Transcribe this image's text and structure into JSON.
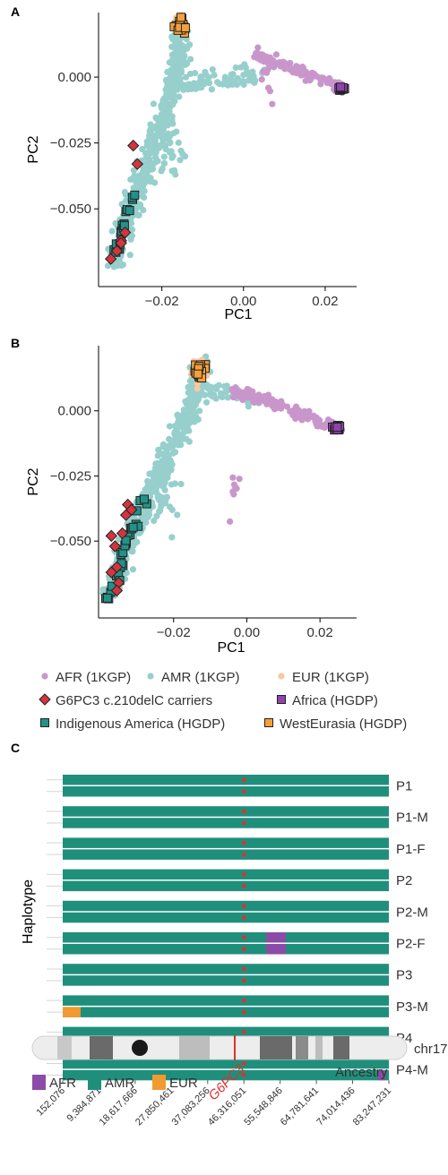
{
  "chart_data": [
    {
      "panel": "A",
      "type": "scatter",
      "xlabel": "PC1",
      "ylabel": "PC2",
      "xticks": [
        "-0.02",
        "0.00",
        "0.02"
      ],
      "yticks": [
        "0.000",
        "-0.025",
        "-0.050"
      ],
      "x_tick_values": [
        -0.02,
        0.0,
        0.02
      ],
      "y_tick_values": [
        0.0,
        -0.025,
        -0.05
      ],
      "xlim": [
        -0.0355,
        0.0277
      ],
      "ylim": [
        -0.0795,
        0.0245
      ],
      "grid": false,
      "clusters": [
        {
          "series": "AMR (1KGP)",
          "kind": "curve",
          "n": 420,
          "spread": 0.0023,
          "path": [
            [
              -0.0318,
              -0.072
            ],
            [
              -0.029,
              -0.057
            ],
            [
              -0.026,
              -0.043
            ],
            [
              -0.0225,
              -0.028
            ],
            [
              -0.0195,
              -0.015
            ],
            [
              -0.0175,
              -0.003
            ],
            [
              -0.0158,
              0.008
            ],
            [
              -0.0155,
              0.017
            ]
          ]
        },
        {
          "series": "AMR (1KGP)",
          "kind": "curve",
          "n": 90,
          "spread": 0.0028,
          "path": [
            [
              -0.019,
              -0.004
            ],
            [
              -0.012,
              -0.002
            ],
            [
              -0.004,
              0.0
            ],
            [
              0.004,
              0.002
            ]
          ]
        },
        {
          "series": "AMR (1KGP)",
          "kind": "blob",
          "n": 40,
          "center": [
            -0.019,
            -0.028
          ],
          "spread": [
            0.004,
            0.009
          ]
        },
        {
          "series": "AFR (1KGP)",
          "kind": "curve",
          "n": 110,
          "spread": 0.0014,
          "path": [
            [
              0.003,
              0.008
            ],
            [
              0.01,
              0.005
            ],
            [
              0.017,
              0.0
            ],
            [
              0.024,
              -0.004
            ]
          ]
        },
        {
          "series": "AFR (1KGP)",
          "kind": "blob",
          "n": 8,
          "center": [
            0.006,
            -0.003
          ],
          "spread": [
            0.004,
            0.008
          ]
        },
        {
          "series": "EUR (1KGP)",
          "kind": "blob",
          "n": 45,
          "center": [
            -0.0155,
            0.02
          ],
          "spread": [
            0.0012,
            0.0025
          ]
        },
        {
          "series": "WestEurasia (HGDP)",
          "kind": "blob",
          "n": 28,
          "center": [
            -0.0155,
            0.0195
          ],
          "spread": [
            0.0011,
            0.0022
          ]
        },
        {
          "series": "Africa (HGDP)",
          "kind": "blob",
          "n": 14,
          "center": [
            0.0238,
            -0.0042
          ],
          "spread": [
            0.0008,
            0.0006
          ]
        },
        {
          "series": "Indigenous America (HGDP)",
          "kind": "curve",
          "n": 20,
          "spread": 0.0008,
          "path": [
            [
              -0.032,
              -0.074
            ],
            [
              -0.0305,
              -0.064
            ],
            [
              -0.029,
              -0.055
            ],
            [
              -0.027,
              -0.045
            ]
          ]
        },
        {
          "series": "G6PC3 c.210delC carriers",
          "kind": "points",
          "points": [
            [
              -0.027,
              -0.026
            ],
            [
              -0.026,
              -0.033
            ],
            [
              -0.029,
              -0.059
            ],
            [
              -0.03,
              -0.062
            ],
            [
              -0.031,
              -0.066
            ],
            [
              -0.0325,
              -0.069
            ],
            [
              -0.03,
              -0.063
            ]
          ]
        }
      ]
    },
    {
      "panel": "B",
      "type": "scatter",
      "xlabel": "PC1",
      "ylabel": "PC2",
      "xticks": [
        "-0.02",
        "0.00",
        "0.02"
      ],
      "yticks": [
        "0.000",
        "-0.025",
        "-0.050"
      ],
      "x_tick_values": [
        -0.02,
        0.0,
        0.02
      ],
      "y_tick_values": [
        0.0,
        -0.025,
        -0.05
      ],
      "xlim": [
        -0.0405,
        0.03
      ],
      "ylim": [
        -0.0795,
        0.025
      ],
      "grid": false,
      "clusters": [
        {
          "series": "AMR (1KGP)",
          "kind": "curve",
          "n": 460,
          "spread": 0.0026,
          "path": [
            [
              -0.0375,
              -0.07
            ],
            [
              -0.034,
              -0.056
            ],
            [
              -0.03,
              -0.042
            ],
            [
              -0.025,
              -0.028
            ],
            [
              -0.02,
              -0.014
            ],
            [
              -0.016,
              -0.002
            ],
            [
              -0.0135,
              0.01
            ],
            [
              -0.013,
              0.017
            ]
          ]
        },
        {
          "series": "AMR (1KGP)",
          "kind": "curve",
          "n": 60,
          "spread": 0.0022,
          "path": [
            [
              -0.014,
              0.006
            ],
            [
              -0.008,
              0.007
            ],
            [
              -0.002,
              0.006
            ],
            [
              0.004,
              0.004
            ]
          ]
        },
        {
          "series": "AMR (1KGP)",
          "kind": "blob",
          "n": 40,
          "center": [
            -0.024,
            -0.035
          ],
          "spread": [
            0.005,
            0.01
          ]
        },
        {
          "series": "AFR (1KGP)",
          "kind": "curve",
          "n": 120,
          "spread": 0.0014,
          "path": [
            [
              -0.004,
              0.008
            ],
            [
              0.004,
              0.005
            ],
            [
              0.012,
              0.0
            ],
            [
              0.02,
              -0.004
            ],
            [
              0.026,
              -0.007
            ]
          ]
        },
        {
          "series": "AFR (1KGP)",
          "kind": "blob",
          "n": 8,
          "center": [
            -0.003,
            -0.032
          ],
          "spread": [
            0.002,
            0.006
          ]
        },
        {
          "series": "EUR (1KGP)",
          "kind": "blob",
          "n": 60,
          "center": [
            -0.0128,
            0.0155
          ],
          "spread": [
            0.0012,
            0.0035
          ]
        },
        {
          "series": "WestEurasia (HGDP)",
          "kind": "blob",
          "n": 40,
          "center": [
            -0.0128,
            0.0155
          ],
          "spread": [
            0.0011,
            0.003
          ]
        },
        {
          "series": "Africa (HGDP)",
          "kind": "blob",
          "n": 16,
          "center": [
            0.0248,
            -0.0065
          ],
          "spread": [
            0.0012,
            0.0011
          ]
        },
        {
          "series": "Indigenous America (HGDP)",
          "kind": "curve",
          "n": 30,
          "spread": 0.0014,
          "path": [
            [
              -0.0385,
              -0.075
            ],
            [
              -0.036,
              -0.066
            ],
            [
              -0.034,
              -0.056
            ],
            [
              -0.031,
              -0.046
            ],
            [
              -0.027,
              -0.031
            ]
          ]
        },
        {
          "series": "G6PC3 c.210delC carriers",
          "kind": "points",
          "points": [
            [
              -0.0325,
              -0.036
            ],
            [
              -0.033,
              -0.04
            ],
            [
              -0.0315,
              -0.038
            ],
            [
              -0.034,
              -0.047
            ],
            [
              -0.037,
              -0.048
            ],
            [
              -0.036,
              -0.052
            ],
            [
              -0.0355,
              -0.06
            ],
            [
              -0.037,
              -0.062
            ],
            [
              -0.035,
              -0.066
            ],
            [
              -0.0355,
              -0.069
            ]
          ]
        }
      ]
    },
    {
      "panel": "C",
      "type": "haplotype-ancestry",
      "ylabel": "Haplotype",
      "rows": [
        "P1",
        "P1-M",
        "P1-F",
        "P2",
        "P2-M",
        "P2-F",
        "P3",
        "P3-M",
        "P4",
        "P4-M"
      ],
      "x_ticks": [
        "152,076",
        "9,384,871",
        "18,617,666",
        "27,850,461",
        "37,083,256",
        "46,316,051",
        "55,548,846",
        "64,781,641",
        "74,014,436",
        "83,247,231"
      ],
      "x_tick_values": [
        152076,
        9384871,
        18617666,
        27850461,
        37083256,
        46316051,
        55548846,
        64781641,
        74014436,
        83247231
      ],
      "position_range": [
        152076,
        83247231
      ],
      "variant_position": 46316051,
      "segments": [
        {
          "row": "P2-F",
          "haplotype": 1,
          "start": 52000000,
          "end": 57000000,
          "ancestry": "AFR"
        },
        {
          "row": "P2-F",
          "haplotype": 2,
          "start": 52000000,
          "end": 57000000,
          "ancestry": "AFR"
        },
        {
          "row": "P3-M",
          "haplotype": 2,
          "start": 152076,
          "end": 4700000,
          "ancestry": "EUR"
        },
        {
          "row": "P4-M",
          "haplotype": 2,
          "start": 80500000,
          "end": 82300000,
          "ancestry": "AFR"
        }
      ],
      "default_ancestry": "AMR",
      "chromosome_label": "chr17",
      "gene_label": "G6PC3",
      "ancestry_title": "Ancestry",
      "ancestry_legend": [
        "AFR",
        "AMR",
        "EUR"
      ]
    }
  ],
  "panel_labels": [
    "A",
    "B",
    "C"
  ],
  "legend": [
    {
      "label": "AFR (1KGP)",
      "shape": "circle",
      "color": "#c996cc"
    },
    {
      "label": "AMR (1KGP)",
      "shape": "circle",
      "color": "#96cfcc"
    },
    {
      "label": "EUR (1KGP)",
      "shape": "circle",
      "color": "#f9c8a0"
    },
    {
      "label": "G6PC3 c.210delC carriers",
      "shape": "diamond",
      "color": "#d1363f"
    },
    {
      "label": "Africa (HGDP)",
      "shape": "square",
      "color": "#8e44ad"
    },
    {
      "label": "Indigenous America (HGDP)",
      "shape": "square",
      "color": "#249189"
    },
    {
      "label": "WestEurasia (HGDP)",
      "shape": "square",
      "color": "#f5a03a"
    }
  ],
  "colors": {
    "AFR": "#8b4ca8",
    "AMR": "#1f8f7c",
    "EUR": "#f09a30",
    "variant": "#e0302d",
    "AFR_1KGP": "#c996cc",
    "AMR_1KGP": "#96cfcc",
    "EUR_1KGP": "#f9c8a0",
    "carrier": "#d1363f",
    "Africa_HGDP": "#8e44ad",
    "Indigenous_HGDP": "#249189",
    "WestEurasia_HGDP": "#f5a03a"
  }
}
